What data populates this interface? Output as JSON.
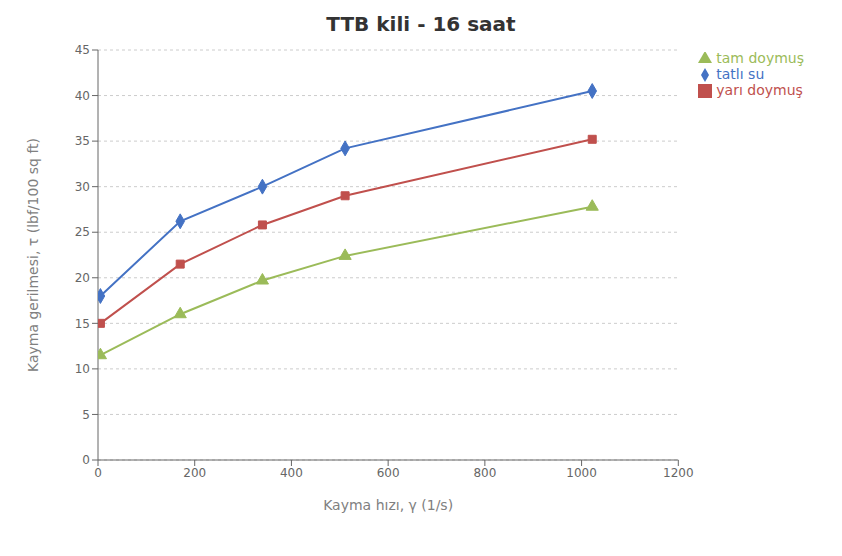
{
  "chart_data": {
    "type": "line",
    "title": "TTB kili - 16 saat",
    "xlabel": "Kayma hızı, γ  (1/s)",
    "ylabel": "Kayma gerilmesi, τ (lbf/100 sq ft)",
    "x": [
      5,
      170,
      340,
      511,
      1022
    ],
    "series": [
      {
        "name": "tatlı su",
        "color": "#4472C4",
        "marker": "diamond",
        "values": [
          18.0,
          26.2,
          30.0,
          34.2,
          40.5
        ]
      },
      {
        "name": "yarı doymuş",
        "color": "#C0504D",
        "marker": "square",
        "values": [
          15.0,
          21.5,
          25.8,
          29.0,
          35.2
        ]
      },
      {
        "name": "tam doymuş",
        "color": "#9BBB59",
        "marker": "triangle",
        "values": [
          11.5,
          16.0,
          19.7,
          22.4,
          27.8
        ]
      }
    ],
    "xlim": [
      0,
      1200
    ],
    "ylim": [
      0,
      45
    ],
    "xticks": [
      0,
      200,
      400,
      600,
      800,
      1000,
      1200
    ],
    "yticks": [
      0,
      5,
      10,
      15,
      20,
      25,
      30,
      35,
      40,
      45
    ],
    "grid": true,
    "legend": "right"
  }
}
